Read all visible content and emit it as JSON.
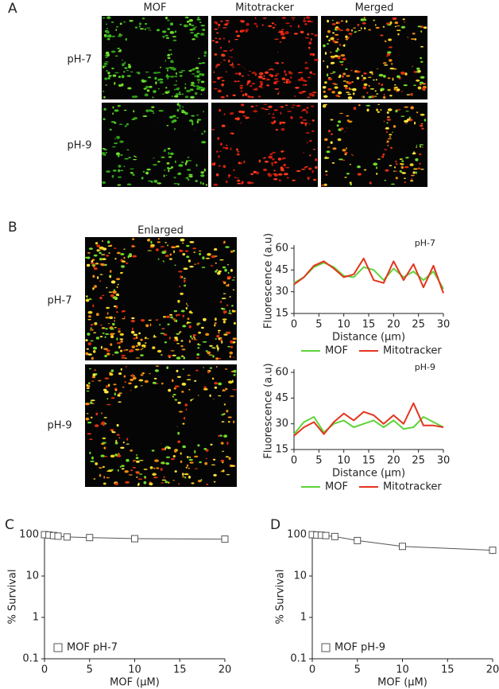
{
  "figure": {
    "panel_a": {
      "label": "A",
      "columns": [
        "MOF",
        "Mitotracker",
        "Merged"
      ],
      "rows": [
        "pH-7",
        "pH-9"
      ]
    },
    "panel_b": {
      "label": "B",
      "image_title": "Enlarged",
      "rows": [
        "pH-7",
        "pH-9"
      ]
    },
    "panel_c_label": "C",
    "panel_d_label": "D"
  },
  "chart_data": [
    {
      "type": "line",
      "subtitle": "pH-7",
      "x_label": "Distance (μm)",
      "y_label": "Fluorescence (a.u)",
      "x": [
        0,
        2,
        4,
        6,
        8,
        10,
        12,
        14,
        16,
        18,
        20,
        22,
        24,
        26,
        28,
        30
      ],
      "series": [
        {
          "name": "MOF",
          "color": "#5fd33a",
          "values": [
            36,
            40,
            47,
            50,
            47,
            41,
            40,
            47,
            45,
            38,
            46,
            40,
            44,
            38,
            44,
            32
          ]
        },
        {
          "name": "Mitotracker",
          "color": "#e5341c",
          "values": [
            35,
            40,
            48,
            51,
            46,
            40,
            42,
            53,
            38,
            36,
            51,
            38,
            49,
            33,
            48,
            29
          ]
        }
      ],
      "xlim": [
        0,
        30
      ],
      "xticks": [
        0,
        5,
        10,
        15,
        20,
        25,
        30
      ],
      "ylim": [
        15,
        60
      ],
      "yticks": [
        15,
        30,
        45,
        60
      ],
      "legend": "bottom"
    },
    {
      "type": "line",
      "subtitle": "pH-9",
      "x_label": "Distance (μm)",
      "y_label": "Fluorescence (a.u)",
      "x": [
        0,
        2,
        4,
        6,
        8,
        10,
        12,
        14,
        16,
        18,
        20,
        22,
        24,
        26,
        28,
        30
      ],
      "series": [
        {
          "name": "MOF",
          "color": "#5fd33a",
          "values": [
            24,
            31,
            34,
            25,
            30,
            32,
            28,
            30,
            32,
            28,
            32,
            27,
            28,
            34,
            31,
            28
          ]
        },
        {
          "name": "Mitotracker",
          "color": "#e5341c",
          "values": [
            23,
            28,
            31,
            24,
            31,
            36,
            32,
            37,
            35,
            30,
            35,
            30,
            42,
            29,
            29,
            28
          ]
        }
      ],
      "xlim": [
        0,
        30
      ],
      "xticks": [
        0,
        5,
        10,
        15,
        20,
        25,
        30
      ],
      "ylim": [
        15,
        60
      ],
      "yticks": [
        15,
        30,
        45,
        60
      ],
      "legend": "bottom"
    },
    {
      "type": "line",
      "x_label": "MOF (μM)",
      "y_label": "% Survival",
      "log_y": true,
      "markers": "square",
      "series": [
        {
          "name": "MOF pH-7",
          "color": "#555555",
          "x": [
            0,
            0.5,
            1,
            1.5,
            2.5,
            5,
            10,
            20
          ],
          "values": [
            100,
            98,
            95,
            92,
            88,
            85,
            80,
            78
          ],
          "errors": [
            8,
            8,
            8,
            8,
            10,
            12,
            12,
            14
          ]
        }
      ],
      "xlim": [
        0,
        20
      ],
      "xticks": [
        0,
        5,
        10,
        15,
        20
      ],
      "ylim": [
        0.1,
        100
      ],
      "yticks": [
        0.1,
        1,
        10,
        100
      ],
      "legend": "lower left"
    },
    {
      "type": "line",
      "x_label": "MOF (μM)",
      "y_label": "% Survival",
      "log_y": true,
      "markers": "square",
      "series": [
        {
          "name": "MOF pH-9",
          "color": "#555555",
          "x": [
            0,
            0.5,
            1,
            1.5,
            2.5,
            5,
            10,
            20
          ],
          "values": [
            100,
            98,
            97,
            95,
            90,
            72,
            52,
            42
          ],
          "errors": [
            8,
            8,
            8,
            8,
            10,
            8,
            8,
            8
          ]
        }
      ],
      "xlim": [
        0,
        20
      ],
      "xticks": [
        0,
        5,
        10,
        15,
        20
      ],
      "ylim": [
        0.1,
        100
      ],
      "yticks": [
        0.1,
        1,
        10,
        100
      ],
      "legend": "lower left"
    }
  ]
}
